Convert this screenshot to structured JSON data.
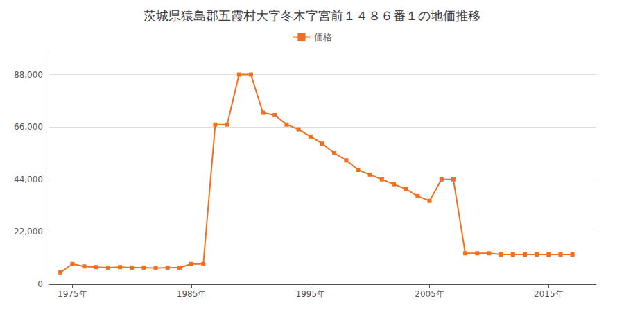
{
  "chart_data": {
    "type": "line",
    "title": "茨城県猿島郡五霞村大字冬木字宮前１４８６番１の地価推移",
    "x": [
      1974,
      1975,
      1976,
      1977,
      1978,
      1979,
      1980,
      1981,
      1982,
      1983,
      1984,
      1985,
      1986,
      1987,
      1988,
      1989,
      1990,
      1991,
      1992,
      1993,
      1994,
      1995,
      1996,
      1997,
      1998,
      1999,
      2000,
      2001,
      2002,
      2003,
      2004,
      2005,
      2006,
      2007,
      2008,
      2009,
      2010,
      2011,
      2012,
      2013,
      2014,
      2015,
      2016,
      2017
    ],
    "series": [
      {
        "name": "価格",
        "color": "#f07020",
        "marker": "square",
        "values": [
          5000,
          8500,
          7500,
          7200,
          7000,
          7200,
          7000,
          7000,
          6800,
          7000,
          7000,
          8500,
          8500,
          67000,
          67000,
          88000,
          88000,
          72000,
          71000,
          67000,
          65000,
          62000,
          59000,
          55000,
          52000,
          48000,
          46000,
          44000,
          42000,
          40000,
          37000,
          35000,
          44000,
          44000,
          13000,
          13000,
          13000,
          12500,
          12500,
          12500,
          12500,
          12500,
          12500,
          12500
        ]
      }
    ],
    "xlim": [
      1973,
      2019
    ],
    "xticks": [
      {
        "value": 1975,
        "label": "1975年"
      },
      {
        "value": 1985,
        "label": "1985年"
      },
      {
        "value": 1995,
        "label": "1995年"
      },
      {
        "value": 2005,
        "label": "2005年"
      },
      {
        "value": 2015,
        "label": "2015年"
      }
    ],
    "ylim": [
      0,
      96000
    ],
    "yticks": [
      0,
      {
        "value": 22000,
        "label": "22,000"
      },
      {
        "value": 44000,
        "label": "44,000"
      },
      {
        "value": 66000,
        "label": "66,000"
      },
      {
        "value": 88000,
        "label": "88,000"
      }
    ],
    "grid": "y",
    "legend": "top"
  }
}
